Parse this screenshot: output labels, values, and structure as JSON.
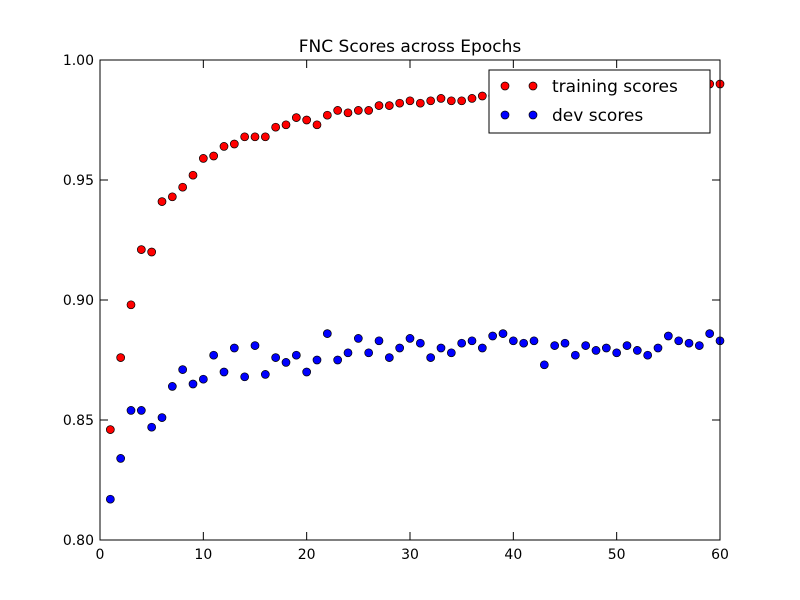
{
  "chart_data": {
    "type": "scatter",
    "title": "FNC Scores across Epochs",
    "xlabel": "",
    "ylabel": "",
    "xlim": [
      0,
      60
    ],
    "ylim": [
      0.8,
      1.0
    ],
    "xticks": [
      "0",
      "10",
      "20",
      "30",
      "40",
      "50",
      "60"
    ],
    "yticks": [
      "0.80",
      "0.85",
      "0.90",
      "0.95",
      "1.00"
    ],
    "grid": false,
    "legend_position": "top-right",
    "series": [
      {
        "name": "training scores",
        "color": "#ff0000",
        "x": [
          1,
          2,
          3,
          4,
          5,
          6,
          7,
          8,
          9,
          10,
          11,
          12,
          13,
          14,
          15,
          16,
          17,
          18,
          19,
          20,
          21,
          22,
          23,
          24,
          25,
          26,
          27,
          28,
          29,
          30,
          31,
          32,
          33,
          34,
          35,
          36,
          37,
          38,
          39,
          40,
          41,
          42,
          43,
          44,
          45,
          46,
          47,
          48,
          49,
          50,
          51,
          52,
          53,
          54,
          55,
          56,
          57,
          58,
          59,
          60
        ],
        "y": [
          0.846,
          0.876,
          0.898,
          0.921,
          0.92,
          0.941,
          0.943,
          0.947,
          0.952,
          0.959,
          0.96,
          0.964,
          0.965,
          0.968,
          0.968,
          0.968,
          0.972,
          0.973,
          0.976,
          0.975,
          0.973,
          0.977,
          0.979,
          0.978,
          0.979,
          0.979,
          0.981,
          0.981,
          0.982,
          0.983,
          0.982,
          0.983,
          0.984,
          0.983,
          0.983,
          0.984,
          0.985,
          0.985,
          0.986,
          0.986,
          0.986,
          0.987,
          0.986,
          0.987,
          0.987,
          0.987,
          0.987,
          0.988,
          0.988,
          0.988,
          0.988,
          0.988,
          0.989,
          0.989,
          0.989,
          0.989,
          0.989,
          0.989,
          0.99,
          0.99
        ]
      },
      {
        "name": "dev scores",
        "color": "#0000ff",
        "x": [
          1,
          2,
          3,
          4,
          5,
          6,
          7,
          8,
          9,
          10,
          11,
          12,
          13,
          14,
          15,
          16,
          17,
          18,
          19,
          20,
          21,
          22,
          23,
          24,
          25,
          26,
          27,
          28,
          29,
          30,
          31,
          32,
          33,
          34,
          35,
          36,
          37,
          38,
          39,
          40,
          41,
          42,
          43,
          44,
          45,
          46,
          47,
          48,
          49,
          50,
          51,
          52,
          53,
          54,
          55,
          56,
          57,
          58,
          59,
          60
        ],
        "y": [
          0.817,
          0.834,
          0.854,
          0.854,
          0.847,
          0.851,
          0.864,
          0.871,
          0.865,
          0.867,
          0.877,
          0.87,
          0.88,
          0.868,
          0.881,
          0.869,
          0.876,
          0.874,
          0.877,
          0.87,
          0.875,
          0.886,
          0.875,
          0.878,
          0.884,
          0.878,
          0.883,
          0.876,
          0.88,
          0.884,
          0.882,
          0.876,
          0.88,
          0.878,
          0.882,
          0.883,
          0.88,
          0.885,
          0.886,
          0.883,
          0.882,
          0.883,
          0.873,
          0.881,
          0.882,
          0.877,
          0.881,
          0.879,
          0.88,
          0.878,
          0.881,
          0.879,
          0.877,
          0.88,
          0.885,
          0.883,
          0.882,
          0.881,
          0.886,
          0.883
        ]
      }
    ]
  }
}
